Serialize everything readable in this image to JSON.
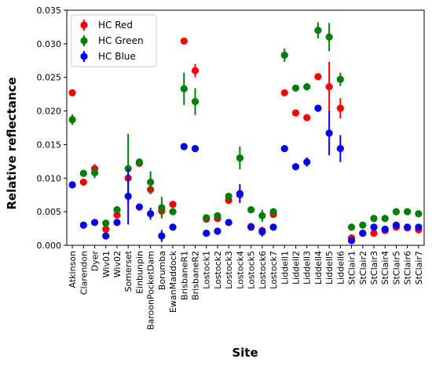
{
  "chart_data": {
    "type": "scatter",
    "xlabel": "Site",
    "ylabel": "Relative reflectance",
    "ylim": [
      0,
      0.035
    ],
    "yticks": [
      "0.000",
      "0.005",
      "0.010",
      "0.015",
      "0.020",
      "0.025",
      "0.030",
      "0.035"
    ],
    "legend_position": "top-left",
    "grid": false,
    "categories": [
      "Atkinson",
      "Clarendon",
      "Dyer",
      "Wiv01",
      "Wiv02",
      "Somerset",
      "Einbunpin",
      "BaroonPocketDam",
      "Borumba",
      "EwanMaddock",
      "BrisbaneR1",
      "BrisbaneR2",
      "Lostock1",
      "Lostock2",
      "Lostock3",
      "Lostock4",
      "Lostock5",
      "Lostock6",
      "Lostock7",
      "Liddell1",
      "Liddell2",
      "Liddell3",
      "Liddell4",
      "Liddell5",
      "Liddell6",
      "StClair1",
      "StClair2",
      "StClair3",
      "StClair4",
      "StClair5",
      "StClair6",
      "StClair7"
    ],
    "series": [
      {
        "name": "HC Red",
        "color": "#ff0000",
        "values": [
          0.0227,
          0.0094,
          0.0114,
          0.0024,
          0.0045,
          0.01,
          0.0122,
          0.0083,
          0.0051,
          0.0061,
          0.0304,
          0.026,
          0.0039,
          0.004,
          0.0067,
          0.0075,
          0.0028,
          0.0022,
          0.0046,
          0.0227,
          0.0197,
          0.019,
          0.0251,
          0.0236,
          0.0204,
          0.0011,
          0.0018,
          0.0018,
          0.0022,
          0.0027,
          0.0026,
          0.0023
        ],
        "err": [
          0.0002,
          0.0002,
          0.0007,
          0.0002,
          0.0003,
          0.0008,
          0.0004,
          0.0007,
          0.0008,
          0.0002,
          0.0005,
          0.001,
          0.0002,
          0.0002,
          0.0003,
          0.0005,
          0.0002,
          0.0002,
          0.0003,
          0.0002,
          0.0005,
          0.0005,
          0.0002,
          0.0037,
          0.0015,
          0.0003,
          0.0002,
          0.0002,
          0.0002,
          0.0002,
          0.0002,
          0.0002
        ]
      },
      {
        "name": "HC Green",
        "color": "#008000",
        "values": [
          0.0187,
          0.0107,
          0.0108,
          0.0033,
          0.0053,
          0.0114,
          0.0124,
          0.0094,
          0.0056,
          0.005,
          0.0233,
          0.0214,
          0.0041,
          0.0044,
          0.0073,
          0.013,
          0.0053,
          0.0044,
          0.005,
          0.0283,
          0.0234,
          0.0236,
          0.032,
          0.031,
          0.0247,
          0.0027,
          0.003,
          0.004,
          0.004,
          0.005,
          0.005,
          0.0047
        ],
        "err": [
          0.0008,
          0.0002,
          0.0008,
          0.0004,
          0.0005,
          0.0052,
          0.0004,
          0.0016,
          0.0016,
          0.0002,
          0.0024,
          0.002,
          0.0002,
          0.0002,
          0.0004,
          0.0017,
          0.0002,
          0.0009,
          0.0003,
          0.001,
          0.0002,
          0.0002,
          0.0012,
          0.0021,
          0.001,
          0.0005,
          0.0002,
          0.0005,
          0.0003,
          0.0002,
          0.0002,
          0.0002
        ]
      },
      {
        "name": "HC Blue",
        "color": "#0000ff",
        "values": [
          0.009,
          0.003,
          0.0034,
          0.0014,
          0.0034,
          0.0073,
          0.0057,
          0.0047,
          0.0014,
          0.0027,
          0.0147,
          0.0144,
          0.0018,
          0.0021,
          0.0034,
          0.0077,
          0.0027,
          0.002,
          0.0027,
          0.0144,
          0.0117,
          0.0124,
          0.0204,
          0.0167,
          0.0144,
          0.0007,
          0.0018,
          0.0027,
          0.0024,
          0.003,
          0.0027,
          0.0027
        ],
        "err": [
          0.0002,
          0.0002,
          0.0002,
          0.0004,
          0.0002,
          0.0042,
          0.0002,
          0.0009,
          0.0009,
          0.0002,
          0.0005,
          0.0005,
          0.0002,
          0.0002,
          0.0002,
          0.0014,
          0.0002,
          0.0007,
          0.0002,
          0.0002,
          0.0002,
          0.0007,
          0.0002,
          0.0033,
          0.002,
          0.0004,
          0.0002,
          0.0002,
          0.0002,
          0.0002,
          0.0002,
          0.0002
        ]
      }
    ]
  }
}
